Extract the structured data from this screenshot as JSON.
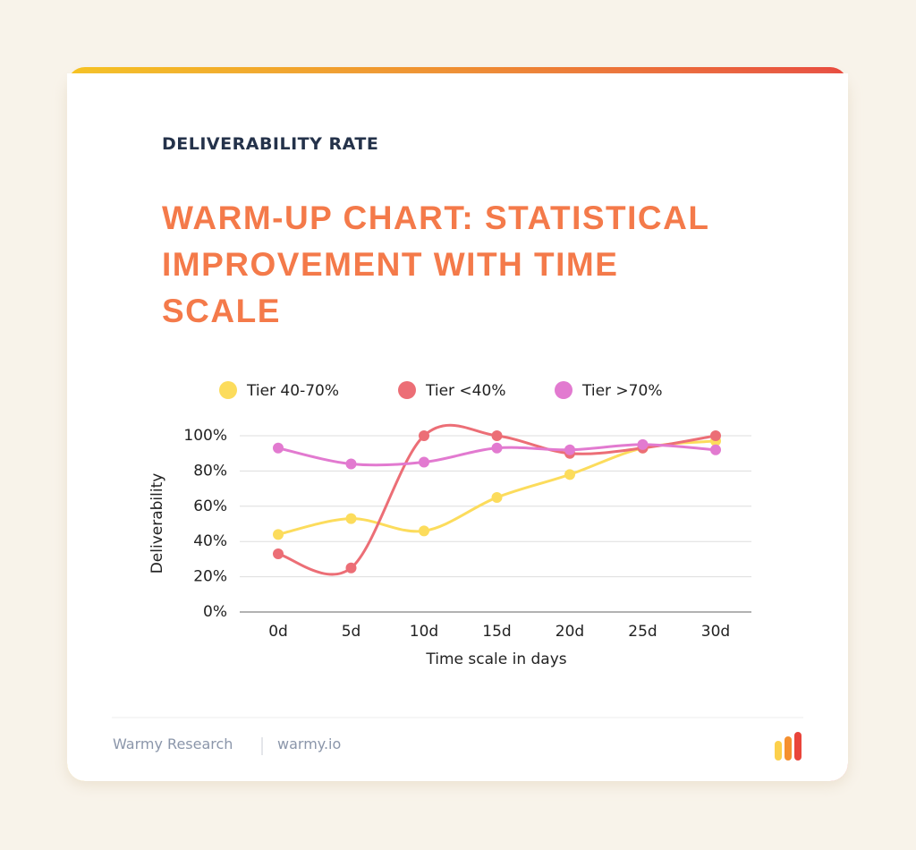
{
  "chart_data": {
    "type": "line",
    "subtitle": "DELIVERABILITY RATE",
    "title": "WARM-UP CHART: STATISTICAL IMPROVEMENT WITH TIME SCALE",
    "categories": [
      "0d",
      "5d",
      "10d",
      "15d",
      "20d",
      "25d",
      "30d"
    ],
    "series": [
      {
        "name": "Tier 40-70%",
        "color": "#fcdc5c",
        "values": [
          44,
          53,
          46,
          65,
          78,
          93,
          97
        ]
      },
      {
        "name": "Tier <40%",
        "color": "#ec6e76",
        "values": [
          33,
          25,
          100,
          100,
          90,
          93,
          100
        ]
      },
      {
        "name": "Tier >70%",
        "color": "#e27ad0",
        "values": [
          93,
          84,
          85,
          93,
          92,
          95,
          92
        ]
      }
    ],
    "ylim": [
      0,
      100
    ],
    "yticks": [
      {
        "value": 0,
        "label": "0%"
      },
      {
        "value": 20,
        "label": "20%"
      },
      {
        "value": 40,
        "label": "40%"
      },
      {
        "value": 60,
        "label": "60%"
      },
      {
        "value": 80,
        "label": "80%"
      },
      {
        "value": 100,
        "label": "100%"
      }
    ],
    "xlabel": "Time scale in days",
    "ylabel": "Deliverability",
    "grid": true
  },
  "footer": {
    "source": "Warmy Research",
    "site": "warmy.io"
  }
}
